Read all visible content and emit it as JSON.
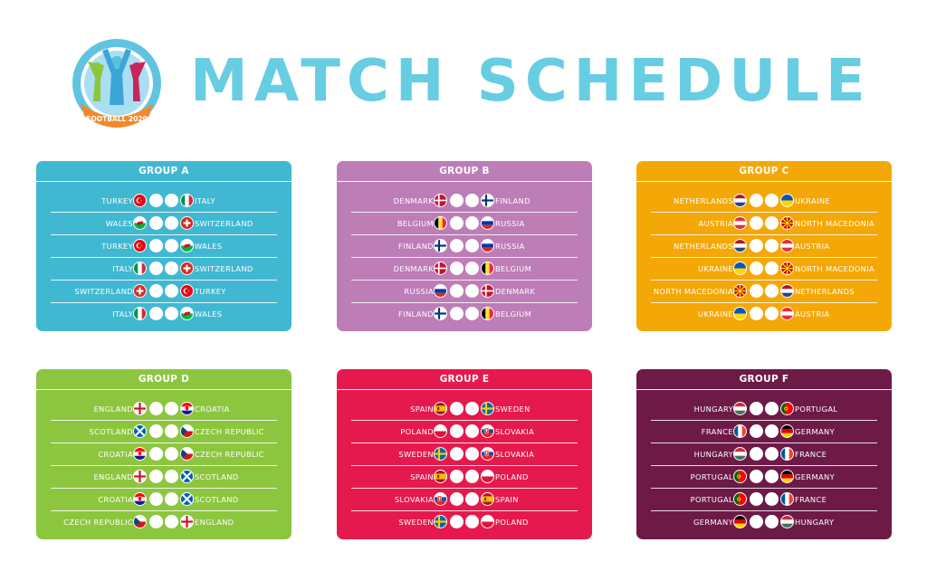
{
  "header": {
    "title": "MATCH SCHEDULE",
    "logo_text": "FOOTBALL 2020"
  },
  "colors": {
    "title": "#67cde2",
    "group_a": "#41b8d1",
    "group_b": "#bd7db7",
    "group_c": "#f4a808",
    "group_d": "#8cc63f",
    "group_e": "#e5194d",
    "group_f": "#6d1a47"
  },
  "groups": [
    {
      "name": "GROUP A",
      "color": "#41b8d1",
      "matches": [
        {
          "home": "TURKEY",
          "home_flag": "turkey",
          "away": "ITALY",
          "away_flag": "italy"
        },
        {
          "home": "WALES",
          "home_flag": "wales",
          "away": "SWITZERLAND",
          "away_flag": "switzerland"
        },
        {
          "home": "TURKEY",
          "home_flag": "turkey",
          "away": "WALES",
          "away_flag": "wales"
        },
        {
          "home": "ITALY",
          "home_flag": "italy",
          "away": "SWITZERLAND",
          "away_flag": "switzerland"
        },
        {
          "home": "SWITZERLAND",
          "home_flag": "switzerland",
          "away": "TURKEY",
          "away_flag": "turkey"
        },
        {
          "home": "ITALY",
          "home_flag": "italy",
          "away": "WALES",
          "away_flag": "wales"
        }
      ]
    },
    {
      "name": "GROUP B",
      "color": "#bd7db7",
      "matches": [
        {
          "home": "DENMARK",
          "home_flag": "denmark",
          "away": "FINLAND",
          "away_flag": "finland"
        },
        {
          "home": "BELGIUM",
          "home_flag": "belgium",
          "away": "RUSSIA",
          "away_flag": "russia"
        },
        {
          "home": "FINLAND",
          "home_flag": "finland",
          "away": "RUSSIA",
          "away_flag": "russia"
        },
        {
          "home": "DENMARK",
          "home_flag": "denmark",
          "away": "BELGIUM",
          "away_flag": "belgium"
        },
        {
          "home": "RUSSIA",
          "home_flag": "russia",
          "away": "DENMARK",
          "away_flag": "denmark"
        },
        {
          "home": "FINLAND",
          "home_flag": "finland",
          "away": "BELGIUM",
          "away_flag": "belgium"
        }
      ]
    },
    {
      "name": "GROUP C",
      "color": "#f4a808",
      "matches": [
        {
          "home": "NETHERLANDS",
          "home_flag": "netherlands",
          "away": "UKRAINE",
          "away_flag": "ukraine"
        },
        {
          "home": "AUSTRIA",
          "home_flag": "austria",
          "away": "NORTH MACEDONIA",
          "away_flag": "north-macedonia"
        },
        {
          "home": "NETHERLANDS",
          "home_flag": "netherlands",
          "away": "AUSTRIA",
          "away_flag": "austria"
        },
        {
          "home": "UKRAINE",
          "home_flag": "ukraine",
          "away": "NORTH MACEDONIA",
          "away_flag": "north-macedonia"
        },
        {
          "home": "NORTH MACEDONIA",
          "home_flag": "north-macedonia",
          "away": "NETHERLANDS",
          "away_flag": "netherlands"
        },
        {
          "home": "UKRAINE",
          "home_flag": "ukraine",
          "away": "AUSTRIA",
          "away_flag": "austria"
        }
      ]
    },
    {
      "name": "GROUP D",
      "color": "#8cc63f",
      "matches": [
        {
          "home": "ENGLAND",
          "home_flag": "england",
          "away": "CROATIA",
          "away_flag": "croatia"
        },
        {
          "home": "SCOTLAND",
          "home_flag": "scotland",
          "away": "CZECH REPUBLIC",
          "away_flag": "czech"
        },
        {
          "home": "CROATIA",
          "home_flag": "croatia",
          "away": "CZECH REPUBLIC",
          "away_flag": "czech"
        },
        {
          "home": "ENGLAND",
          "home_flag": "england",
          "away": "SCOTLAND",
          "away_flag": "scotland"
        },
        {
          "home": "CROATIA",
          "home_flag": "croatia",
          "away": "SCOTLAND",
          "away_flag": "scotland"
        },
        {
          "home": "CZECH REPUBLIC",
          "home_flag": "czech",
          "away": "ENGLAND",
          "away_flag": "england"
        }
      ]
    },
    {
      "name": "GROUP E",
      "color": "#e5194d",
      "matches": [
        {
          "home": "SPAIN",
          "home_flag": "spain",
          "away": "SWEDEN",
          "away_flag": "sweden"
        },
        {
          "home": "POLAND",
          "home_flag": "poland",
          "away": "SLOVAKIA",
          "away_flag": "slovakia"
        },
        {
          "home": "SWEDEN",
          "home_flag": "sweden",
          "away": "SLOVAKIA",
          "away_flag": "slovakia"
        },
        {
          "home": "SPAIN",
          "home_flag": "spain",
          "away": "POLAND",
          "away_flag": "poland"
        },
        {
          "home": "SLOVAKIA",
          "home_flag": "slovakia",
          "away": "SPAIN",
          "away_flag": "spain"
        },
        {
          "home": "SWEDEN",
          "home_flag": "sweden",
          "away": "POLAND",
          "away_flag": "poland"
        }
      ]
    },
    {
      "name": "GROUP F",
      "color": "#6d1a47",
      "matches": [
        {
          "home": "HUNGARY",
          "home_flag": "hungary",
          "away": "PORTUGAL",
          "away_flag": "portugal"
        },
        {
          "home": "FRANCE",
          "home_flag": "france",
          "away": "GERMANY",
          "away_flag": "germany"
        },
        {
          "home": "HUNGARY",
          "home_flag": "hungary",
          "away": "FRANCE",
          "away_flag": "france"
        },
        {
          "home": "PORTUGAL",
          "home_flag": "portugal",
          "away": "GERMANY",
          "away_flag": "germany"
        },
        {
          "home": "PORTUGAL",
          "home_flag": "portugal",
          "away": "FRANCE",
          "away_flag": "france"
        },
        {
          "home": "GERMANY",
          "home_flag": "germany",
          "away": "HUNGARY",
          "away_flag": "hungary"
        }
      ]
    }
  ]
}
